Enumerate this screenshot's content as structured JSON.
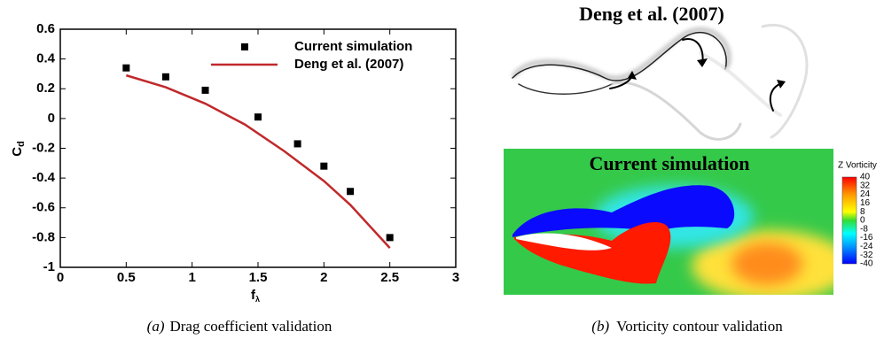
{
  "chart_data": {
    "type": "line",
    "xlabel": {
      "base": "f",
      "subscript": "λ"
    },
    "ylabel": {
      "base": "C",
      "subscript": "d"
    },
    "xlim": [
      0,
      3
    ],
    "xticks": [
      0,
      0.5,
      1,
      1.5,
      2,
      2.5,
      3
    ],
    "ylim": [
      -1,
      0.6
    ],
    "yticks": [
      -1,
      -0.8,
      -0.6,
      -0.4,
      -0.2,
      0,
      0.2,
      0.4,
      0.6
    ],
    "grid": false,
    "series": [
      {
        "name": "Current simulation",
        "color": "#000000",
        "mode": "markers",
        "x": [
          0.5,
          0.8,
          1.1,
          1.5,
          1.8,
          2.0,
          2.2,
          2.5
        ],
        "values": [
          0.34,
          0.28,
          0.19,
          0.01,
          -0.17,
          -0.32,
          -0.49,
          -0.8
        ]
      },
      {
        "name": "Deng et al. (2007)",
        "color": "#c0292b",
        "mode": "line",
        "x": [
          0.5,
          0.8,
          1.1,
          1.4,
          1.7,
          2.0,
          2.2,
          2.5
        ],
        "values": [
          0.29,
          0.21,
          0.1,
          -0.04,
          -0.22,
          -0.42,
          -0.58,
          -0.87
        ]
      }
    ]
  },
  "caption_a": {
    "label": "(a)",
    "text": "Drag coefficient validation"
  },
  "caption_b": {
    "label": "(b)",
    "text": "Vorticity contour validation"
  },
  "right_panel": {
    "top_title": "Deng et al. (2007)",
    "bottom_title": "Current simulation",
    "colorbar": {
      "title": "Z Vorticity",
      "ticks": [
        40,
        32,
        24,
        16,
        8,
        0,
        -8,
        -16,
        -24,
        -32,
        -40
      ]
    }
  }
}
